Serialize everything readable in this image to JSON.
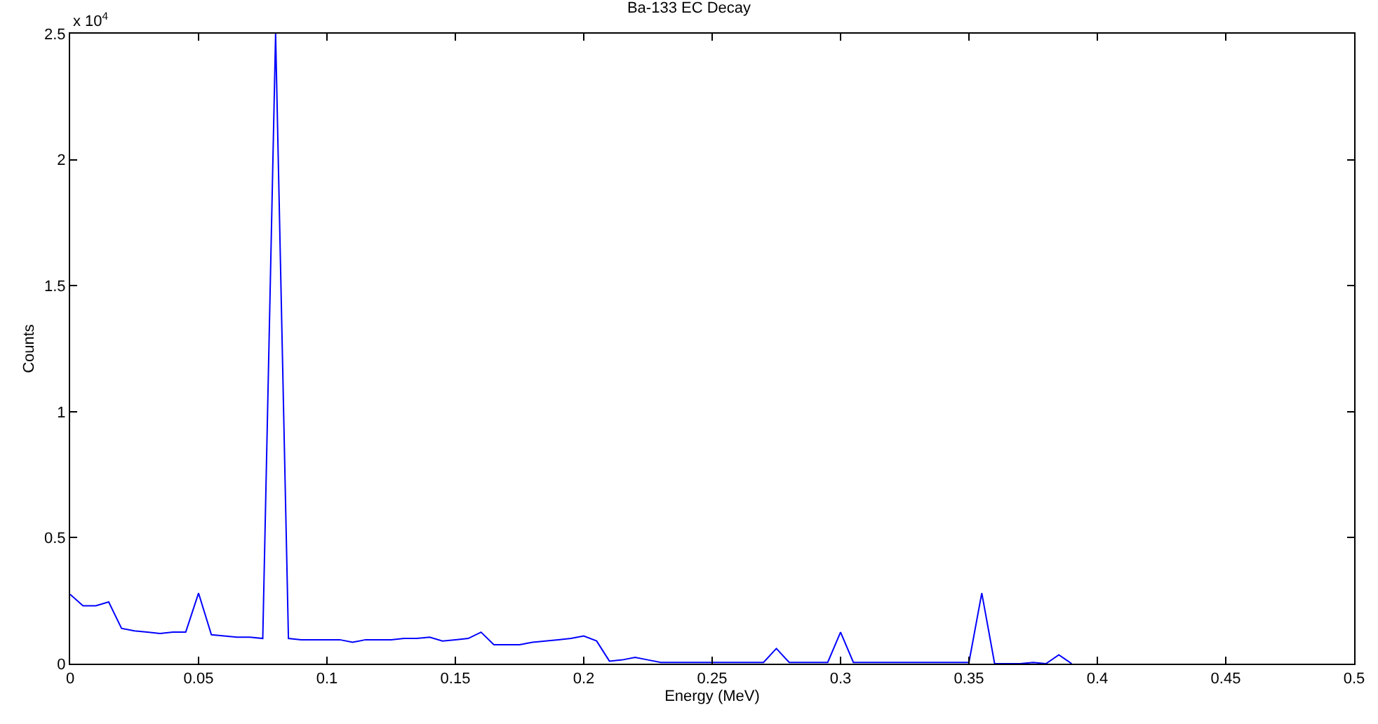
{
  "chart_data": {
    "type": "line",
    "title": "Ba-133 EC Decay",
    "xlabel": "Energy (MeV)",
    "ylabel": "Counts",
    "annotations": [
      "x 10$^{4}$"
    ],
    "x": [
      0,
      0.005,
      0.01,
      0.015,
      0.02,
      0.025,
      0.03,
      0.035,
      0.04,
      0.045,
      0.05,
      0.055,
      0.06,
      0.065,
      0.07,
      0.075,
      0.08,
      0.085,
      0.09,
      0.095,
      0.1,
      0.105,
      0.11,
      0.115,
      0.12,
      0.125,
      0.13,
      0.135,
      0.14,
      0.145,
      0.15,
      0.155,
      0.16,
      0.165,
      0.17,
      0.175,
      0.18,
      0.185,
      0.19,
      0.195,
      0.2,
      0.205,
      0.21,
      0.215,
      0.22,
      0.225,
      0.23,
      0.235,
      0.24,
      0.245,
      0.25,
      0.255,
      0.26,
      0.265,
      0.27,
      0.275,
      0.28,
      0.285,
      0.29,
      0.295,
      0.3,
      0.305,
      0.31,
      0.315,
      0.32,
      0.325,
      0.33,
      0.335,
      0.34,
      0.345,
      0.35,
      0.355,
      0.36,
      0.365,
      0.37,
      0.375,
      0.38,
      0.385,
      0.39
    ],
    "series": [
      {
        "color": "#0000ff",
        "values": [
          0.275,
          0.23,
          0.23,
          0.245,
          0.14,
          0.13,
          0.125,
          0.12,
          0.125,
          0.125,
          0.28,
          0.115,
          0.11,
          0.105,
          0.105,
          0.1,
          2.5,
          0.1,
          0.095,
          0.095,
          0.095,
          0.095,
          0.085,
          0.095,
          0.095,
          0.095,
          0.1,
          0.1,
          0.105,
          0.09,
          0.095,
          0.1,
          0.125,
          0.075,
          0.075,
          0.075,
          0.085,
          0.09,
          0.095,
          0.1,
          0.11,
          0.09,
          0.01,
          0.015,
          0.025,
          0.015,
          0.005,
          0.005,
          0.005,
          0.005,
          0.005,
          0.005,
          0.005,
          0.005,
          0.005,
          0.06,
          0.005,
          0.005,
          0.005,
          0.005,
          0.125,
          0.005,
          0.005,
          0.005,
          0.005,
          0.005,
          0.005,
          0.005,
          0.005,
          0.005,
          0.005,
          0.28,
          0,
          0,
          0,
          0.005,
          0,
          0.035,
          0
        ]
      }
    ],
    "xlim": [
      0,
      0.5
    ],
    "xticks": [
      0,
      0.05,
      0.1,
      0.15,
      0.2,
      0.25,
      0.3,
      0.35,
      0.4,
      0.45,
      0.5
    ],
    "ylim": [
      0,
      2.5
    ],
    "yticks": [
      0,
      0.5,
      1,
      1.5,
      2,
      2.5
    ],
    "legend": false,
    "marker": "none",
    "line_style": "solid"
  }
}
